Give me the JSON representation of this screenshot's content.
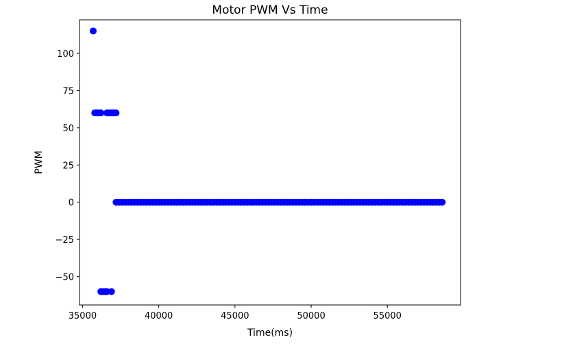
{
  "chart_data": {
    "type": "scatter",
    "title": "Motor PWM Vs Time",
    "xlabel": "Time(ms)",
    "ylabel": "PWM",
    "xlim": [
      34800,
      59800
    ],
    "ylim": [
      -69,
      122.5
    ],
    "xticks": [
      35000,
      40000,
      45000,
      50000,
      55000
    ],
    "xtick_labels": [
      "35000",
      "40000",
      "45000",
      "50000",
      "55000"
    ],
    "yticks": [
      -50,
      -25,
      0,
      25,
      50,
      75,
      100
    ],
    "ytick_labels": [
      "−50",
      "−25",
      "0",
      "25",
      "50",
      "75",
      "100"
    ],
    "grid": false,
    "marker_color": "#0000ff",
    "points": [
      {
        "x": 35700,
        "y": 115
      },
      {
        "x": 35800,
        "y": 60
      },
      {
        "x": 35900,
        "y": 60
      },
      {
        "x": 36000,
        "y": 60
      },
      {
        "x": 36100,
        "y": 60
      },
      {
        "x": 36200,
        "y": 60
      },
      {
        "x": 36200,
        "y": -60
      },
      {
        "x": 36300,
        "y": -60
      },
      {
        "x": 36400,
        "y": -60
      },
      {
        "x": 36500,
        "y": -60
      },
      {
        "x": 36600,
        "y": -60
      },
      {
        "x": 36600,
        "y": 60
      },
      {
        "x": 36700,
        "y": 60
      },
      {
        "x": 36800,
        "y": 60
      },
      {
        "x": 36900,
        "y": 60
      },
      {
        "x": 36900,
        "y": -60
      },
      {
        "x": 37000,
        "y": 60
      },
      {
        "x": 37100,
        "y": 60
      },
      {
        "x": 37200,
        "y": 60
      }
    ],
    "zero_run": {
      "x_start": 37200,
      "x_end": 58600,
      "step": 200,
      "y": 0
    }
  }
}
